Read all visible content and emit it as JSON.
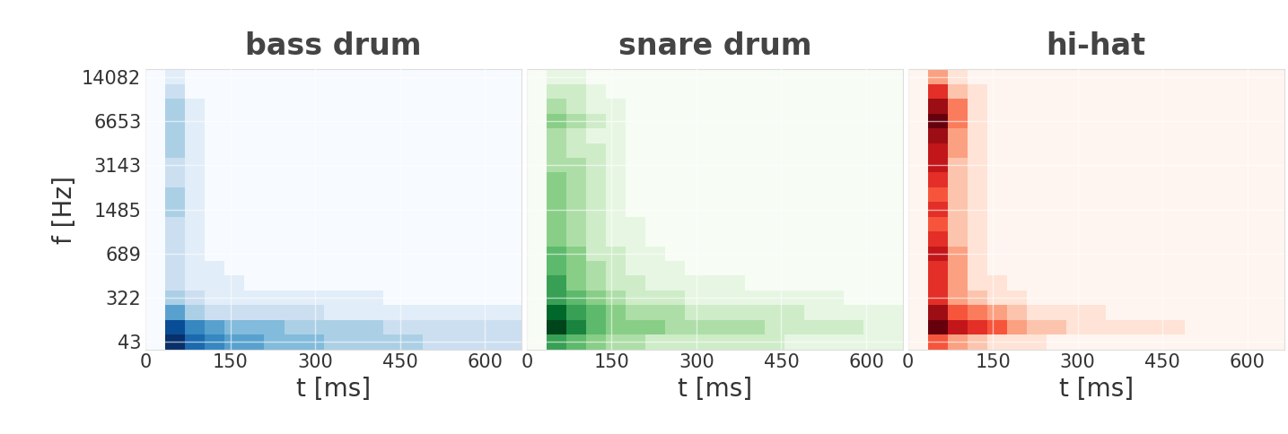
{
  "chart_data": [
    {
      "type": "heatmap",
      "title": "bass drum",
      "x_label": "t [ms]",
      "y_label": "f [Hz]",
      "color": "Blues",
      "grid": true,
      "bins": [
        0,
        35,
        70,
        105,
        140,
        175,
        210,
        245,
        280,
        315,
        350,
        385,
        420,
        455,
        490,
        525,
        560,
        595,
        630,
        665
      ],
      "y": [
        43,
        null,
        null,
        322,
        null,
        null,
        689,
        null,
        null,
        1485,
        null,
        null,
        3143,
        null,
        null,
        6653,
        null,
        null,
        14082
      ],
      "xlim": [
        0,
        665
      ],
      "xticks": [
        0,
        150,
        300,
        450,
        600
      ],
      "cells": [
        [
          0,
          9,
          7,
          6,
          5,
          5,
          4,
          4,
          4,
          3,
          3,
          3,
          3,
          3,
          2,
          2,
          2,
          2,
          2
        ],
        [
          0,
          8,
          6,
          5,
          4,
          4,
          4,
          3,
          3,
          3,
          3,
          3,
          2,
          2,
          2,
          2,
          2,
          2,
          2
        ],
        [
          0,
          5,
          3,
          2,
          2,
          2,
          2,
          2,
          2,
          1,
          1,
          1,
          1,
          1,
          1,
          1,
          1,
          1,
          1
        ],
        [
          0,
          3,
          2,
          1,
          1,
          1,
          1,
          1,
          1,
          1,
          1,
          1,
          0,
          0,
          0,
          0,
          0,
          0,
          0
        ],
        [
          0,
          2,
          1,
          1,
          1,
          0,
          0,
          0,
          0,
          0,
          0,
          0,
          0,
          0,
          0,
          0,
          0,
          0,
          0
        ],
        [
          0,
          2,
          1,
          1,
          0,
          0,
          0,
          0,
          0,
          0,
          0,
          0,
          0,
          0,
          0,
          0,
          0,
          0,
          0
        ],
        [
          0,
          2,
          1,
          0,
          0,
          0,
          0,
          0,
          0,
          0,
          0,
          0,
          0,
          0,
          0,
          0,
          0,
          0,
          0
        ],
        [
          0,
          2,
          1,
          0,
          0,
          0,
          0,
          0,
          0,
          0,
          0,
          0,
          0,
          0,
          0,
          0,
          0,
          0,
          0
        ],
        [
          0,
          2,
          1,
          0,
          0,
          0,
          0,
          0,
          0,
          0,
          0,
          0,
          0,
          0,
          0,
          0,
          0,
          0,
          0
        ],
        [
          0,
          3,
          1,
          0,
          0,
          0,
          0,
          0,
          0,
          0,
          0,
          0,
          0,
          0,
          0,
          0,
          0,
          0,
          0
        ],
        [
          0,
          3,
          1,
          0,
          0,
          0,
          0,
          0,
          0,
          0,
          0,
          0,
          0,
          0,
          0,
          0,
          0,
          0,
          0
        ],
        [
          0,
          2,
          1,
          0,
          0,
          0,
          0,
          0,
          0,
          0,
          0,
          0,
          0,
          0,
          0,
          0,
          0,
          0,
          0
        ],
        [
          0,
          2,
          1,
          0,
          0,
          0,
          0,
          0,
          0,
          0,
          0,
          0,
          0,
          0,
          0,
          0,
          0,
          0,
          0
        ],
        [
          0,
          3,
          1,
          0,
          0,
          0,
          0,
          0,
          0,
          0,
          0,
          0,
          0,
          0,
          0,
          0,
          0,
          0,
          0
        ],
        [
          0,
          3,
          1,
          0,
          0,
          0,
          0,
          0,
          0,
          0,
          0,
          0,
          0,
          0,
          0,
          0,
          0,
          0,
          0
        ],
        [
          0,
          3,
          1,
          0,
          0,
          0,
          0,
          0,
          0,
          0,
          0,
          0,
          0,
          0,
          0,
          0,
          0,
          0,
          0
        ],
        [
          0,
          3,
          1,
          0,
          0,
          0,
          0,
          0,
          0,
          0,
          0,
          0,
          0,
          0,
          0,
          0,
          0,
          0,
          0
        ],
        [
          0,
          2,
          0,
          0,
          0,
          0,
          0,
          0,
          0,
          0,
          0,
          0,
          0,
          0,
          0,
          0,
          0,
          0,
          0
        ],
        [
          0,
          1,
          0,
          0,
          0,
          0,
          0,
          0,
          0,
          0,
          0,
          0,
          0,
          0,
          0,
          0,
          0,
          0,
          0
        ]
      ]
    },
    {
      "type": "heatmap",
      "title": "snare drum",
      "x_label": "t [ms]",
      "color": "Greens",
      "grid": true,
      "tick_labels": "x",
      "bins": [
        0,
        35,
        70,
        105,
        140,
        175,
        210,
        245,
        280,
        315,
        350,
        385,
        420,
        455,
        490,
        525,
        560,
        595,
        630,
        665
      ],
      "y": [
        43,
        null,
        null,
        322,
        null,
        null,
        689,
        null,
        null,
        1485,
        null,
        null,
        3143,
        null,
        null,
        6653,
        null,
        null,
        14082
      ],
      "xlim": [
        0,
        665
      ],
      "xticks": [
        0,
        150,
        300,
        450,
        600
      ],
      "cells": [
        [
          0,
          6,
          5,
          4,
          3,
          3,
          2,
          2,
          2,
          2,
          2,
          2,
          2,
          1,
          1,
          1,
          1,
          1,
          1
        ],
        [
          0,
          9,
          7,
          5,
          4,
          4,
          4,
          3,
          3,
          3,
          3,
          3,
          2,
          2,
          2,
          2,
          2,
          1,
          1
        ],
        [
          0,
          8,
          6,
          5,
          4,
          3,
          3,
          3,
          2,
          2,
          2,
          2,
          2,
          2,
          1,
          1,
          1,
          1,
          1
        ],
        [
          0,
          6,
          5,
          4,
          3,
          2,
          2,
          2,
          1,
          1,
          1,
          1,
          1,
          1,
          1,
          1,
          0,
          0,
          0
        ],
        [
          0,
          6,
          4,
          3,
          2,
          2,
          1,
          1,
          1,
          1,
          1,
          0,
          0,
          0,
          0,
          0,
          0,
          0,
          0
        ],
        [
          0,
          5,
          4,
          3,
          2,
          1,
          1,
          1,
          0,
          0,
          0,
          0,
          0,
          0,
          0,
          0,
          0,
          0,
          0
        ],
        [
          0,
          5,
          4,
          2,
          2,
          1,
          1,
          0,
          0,
          0,
          0,
          0,
          0,
          0,
          0,
          0,
          0,
          0,
          0
        ],
        [
          0,
          4,
          3,
          2,
          1,
          1,
          0,
          0,
          0,
          0,
          0,
          0,
          0,
          0,
          0,
          0,
          0,
          0,
          0
        ],
        [
          0,
          4,
          3,
          2,
          1,
          1,
          0,
          0,
          0,
          0,
          0,
          0,
          0,
          0,
          0,
          0,
          0,
          0,
          0
        ],
        [
          0,
          4,
          3,
          2,
          1,
          0,
          0,
          0,
          0,
          0,
          0,
          0,
          0,
          0,
          0,
          0,
          0,
          0,
          0
        ],
        [
          0,
          4,
          3,
          2,
          1,
          0,
          0,
          0,
          0,
          0,
          0,
          0,
          0,
          0,
          0,
          0,
          0,
          0,
          0
        ],
        [
          0,
          4,
          3,
          2,
          1,
          0,
          0,
          0,
          0,
          0,
          0,
          0,
          0,
          0,
          0,
          0,
          0,
          0,
          0
        ],
        [
          0,
          3,
          3,
          2,
          1,
          0,
          0,
          0,
          0,
          0,
          0,
          0,
          0,
          0,
          0,
          0,
          0,
          0,
          0
        ],
        [
          0,
          3,
          2,
          2,
          1,
          0,
          0,
          0,
          0,
          0,
          0,
          0,
          0,
          0,
          0,
          0,
          0,
          0,
          0
        ],
        [
          0,
          3,
          2,
          1,
          1,
          0,
          0,
          0,
          0,
          0,
          0,
          0,
          0,
          0,
          0,
          0,
          0,
          0,
          0
        ],
        [
          0,
          4,
          3,
          2,
          1,
          0,
          0,
          0,
          0,
          0,
          0,
          0,
          0,
          0,
          0,
          0,
          0,
          0,
          0
        ],
        [
          0,
          3,
          2,
          1,
          1,
          0,
          0,
          0,
          0,
          0,
          0,
          0,
          0,
          0,
          0,
          0,
          0,
          0,
          0
        ],
        [
          0,
          2,
          2,
          1,
          0,
          0,
          0,
          0,
          0,
          0,
          0,
          0,
          0,
          0,
          0,
          0,
          0,
          0,
          0
        ],
        [
          0,
          1,
          1,
          0,
          0,
          0,
          0,
          0,
          0,
          0,
          0,
          0,
          0,
          0,
          0,
          0,
          0,
          0,
          0
        ]
      ]
    },
    {
      "type": "heatmap",
      "title": "hi-hat",
      "x_label": "t [ms]",
      "color": "Reds",
      "grid": true,
      "tick_labels": "x",
      "bins": [
        0,
        35,
        70,
        105,
        140,
        175,
        210,
        245,
        280,
        315,
        350,
        385,
        420,
        455,
        490,
        525,
        560,
        595,
        630,
        665
      ],
      "y": [
        43,
        null,
        null,
        322,
        null,
        null,
        689,
        null,
        null,
        1485,
        null,
        null,
        3143,
        null,
        null,
        6653,
        null,
        null,
        14082
      ],
      "xlim": [
        0,
        665
      ],
      "xticks": [
        0,
        150,
        300,
        450,
        600
      ],
      "cells": [
        [
          0,
          5,
          3,
          2,
          1,
          1,
          1,
          0,
          0,
          0,
          0,
          0,
          0,
          0,
          0,
          0,
          0,
          0,
          0
        ],
        [
          0,
          9,
          7,
          6,
          5,
          3,
          2,
          2,
          1,
          1,
          1,
          1,
          1,
          1,
          0,
          0,
          0,
          0,
          0
        ],
        [
          0,
          8,
          5,
          4,
          3,
          2,
          1,
          1,
          1,
          1,
          0,
          0,
          0,
          0,
          0,
          0,
          0,
          0,
          0
        ],
        [
          0,
          6,
          3,
          2,
          1,
          1,
          0,
          0,
          0,
          0,
          0,
          0,
          0,
          0,
          0,
          0,
          0,
          0,
          0
        ],
        [
          0,
          6,
          3,
          1,
          1,
          0,
          0,
          0,
          0,
          0,
          0,
          0,
          0,
          0,
          0,
          0,
          0,
          0,
          0
        ],
        [
          0,
          6,
          3,
          1,
          0,
          0,
          0,
          0,
          0,
          0,
          0,
          0,
          0,
          0,
          0,
          0,
          0,
          0,
          0
        ],
        [
          0,
          7,
          3,
          1,
          0,
          0,
          0,
          0,
          0,
          0,
          0,
          0,
          0,
          0,
          0,
          0,
          0,
          0,
          0
        ],
        [
          0,
          6,
          2,
          1,
          0,
          0,
          0,
          0,
          0,
          0,
          0,
          0,
          0,
          0,
          0,
          0,
          0,
          0,
          0
        ],
        [
          0,
          5,
          2,
          1,
          0,
          0,
          0,
          0,
          0,
          0,
          0,
          0,
          0,
          0,
          0,
          0,
          0,
          0,
          0
        ],
        [
          0,
          6,
          2,
          1,
          0,
          0,
          0,
          0,
          0,
          0,
          0,
          0,
          0,
          0,
          0,
          0,
          0,
          0,
          0
        ],
        [
          0,
          5,
          2,
          1,
          0,
          0,
          0,
          0,
          0,
          0,
          0,
          0,
          0,
          0,
          0,
          0,
          0,
          0,
          0
        ],
        [
          0,
          6,
          2,
          1,
          0,
          0,
          0,
          0,
          0,
          0,
          0,
          0,
          0,
          0,
          0,
          0,
          0,
          0,
          0
        ],
        [
          0,
          7,
          2,
          1,
          0,
          0,
          0,
          0,
          0,
          0,
          0,
          0,
          0,
          0,
          0,
          0,
          0,
          0,
          0
        ],
        [
          0,
          7,
          3,
          1,
          0,
          0,
          0,
          0,
          0,
          0,
          0,
          0,
          0,
          0,
          0,
          0,
          0,
          0,
          0
        ],
        [
          0,
          8,
          3,
          1,
          0,
          0,
          0,
          0,
          0,
          0,
          0,
          0,
          0,
          0,
          0,
          0,
          0,
          0,
          0
        ],
        [
          0,
          9,
          4,
          1,
          0,
          0,
          0,
          0,
          0,
          0,
          0,
          0,
          0,
          0,
          0,
          0,
          0,
          0,
          0
        ],
        [
          0,
          8,
          4,
          1,
          0,
          0,
          0,
          0,
          0,
          0,
          0,
          0,
          0,
          0,
          0,
          0,
          0,
          0,
          0
        ],
        [
          0,
          6,
          2,
          1,
          0,
          0,
          0,
          0,
          0,
          0,
          0,
          0,
          0,
          0,
          0,
          0,
          0,
          0,
          0
        ],
        [
          0,
          3,
          1,
          0,
          0,
          0,
          0,
          0,
          0,
          0,
          0,
          0,
          0,
          0,
          0,
          0,
          0,
          0,
          0
        ]
      ]
    }
  ]
}
